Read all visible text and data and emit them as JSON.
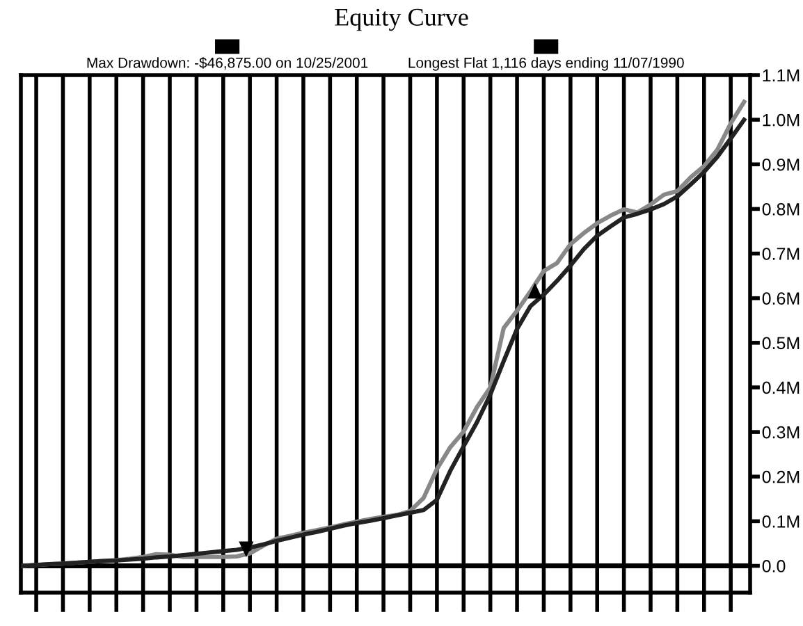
{
  "chart_data": {
    "type": "line",
    "title": "Equity Curve",
    "annotations": [
      "Max Drawdown: -$46,875.00 on 10/25/2001",
      "Longest Flat 1,116 days ending 11/07/1990"
    ],
    "categories": [
      null,
      null,
      null,
      null,
      null,
      null,
      null,
      null,
      null,
      null,
      null,
      null,
      null,
      null,
      null,
      null,
      null,
      null,
      null,
      null,
      null,
      null,
      null,
      null,
      null,
      null,
      null,
      null,
      null,
      null,
      null,
      null,
      null,
      null,
      null,
      null,
      null,
      null,
      null,
      null,
      null,
      null,
      null,
      null,
      null,
      null,
      null,
      null,
      null,
      null,
      null,
      null,
      null,
      null,
      null
    ],
    "series": [
      {
        "color": "#888888",
        "values": [
          0,
          2000,
          4000,
          5000,
          7000,
          9000,
          11000,
          13000,
          16000,
          20000,
          26000,
          25000,
          20000,
          20000,
          20000,
          20000,
          21000,
          28000,
          45000,
          61000,
          67000,
          74000,
          80000,
          86000,
          93000,
          99000,
          105000,
          110000,
          114000,
          123000,
          152000,
          217000,
          266000,
          301000,
          356000,
          400000,
          533000,
          572000,
          615000,
          661000,
          679000,
          721000,
          746000,
          768000,
          785000,
          799000,
          792000,
          810000,
          832000,
          840000,
          871000,
          896000,
          933000,
          992000,
          1040000
        ]
      },
      {
        "color": "#222222",
        "values": [
          0,
          2000,
          4000,
          5000,
          7000,
          9000,
          11000,
          12000,
          14000,
          16000,
          19000,
          21000,
          24000,
          27000,
          30000,
          33000,
          36000,
          41000,
          48000,
          56000,
          63000,
          70000,
          76000,
          83000,
          90000,
          96000,
          101000,
          107000,
          113000,
          119000,
          125000,
          148000,
          213000,
          268000,
          322000,
          384000,
          459000,
          531000,
          582000,
          608000,
          639000,
          673000,
          710000,
          740000,
          761000,
          781000,
          789000,
          799000,
          811000,
          828000,
          855000,
          883000,
          917000,
          958000,
          1000000
        ]
      }
    ],
    "ylim": [
      -60000,
      1100000
    ],
    "yticks": [
      {
        "value": 0,
        "label": "0.0"
      },
      {
        "value": 100000,
        "label": "0.1M"
      },
      {
        "value": 200000,
        "label": "0.2M"
      },
      {
        "value": 300000,
        "label": "0.3M"
      },
      {
        "value": 400000,
        "label": "0.4M"
      },
      {
        "value": 500000,
        "label": "0.5M"
      },
      {
        "value": 600000,
        "label": "0.6M"
      },
      {
        "value": 700000,
        "label": "0.7M"
      },
      {
        "value": 800000,
        "label": "0.8M"
      },
      {
        "value": 900000,
        "label": "0.9M"
      },
      {
        "value": 1000000,
        "label": "1.0M"
      },
      {
        "value": 1100000,
        "label": "1.1M"
      }
    ],
    "ref_lines": [
      {
        "axis": "y",
        "value": 0,
        "color": "#000000"
      }
    ],
    "grid": "x",
    "legend": false,
    "marker": "none",
    "line_style": "solid"
  }
}
